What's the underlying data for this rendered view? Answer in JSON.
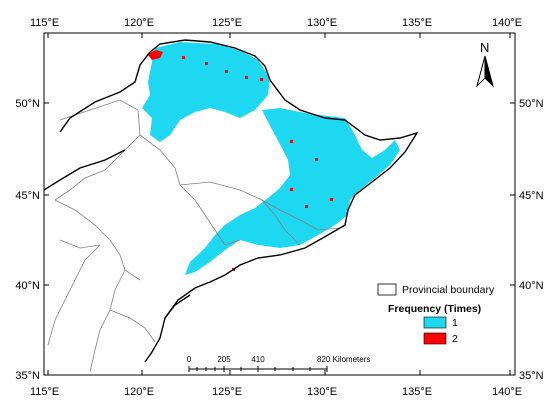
{
  "axes": {
    "lon_labels": [
      "115°E",
      "120°E",
      "125°E",
      "130°E",
      "135°E",
      "140°E"
    ],
    "lat_labels": [
      "50°N",
      "45°N",
      "40°N",
      "35°N"
    ]
  },
  "north_arrow": {
    "label": "N",
    "icon": "north-arrow-icon"
  },
  "legend": {
    "boundary_label": "Provincial boundary",
    "frequency_title": "Frequency (Times)",
    "items": [
      {
        "label": "1",
        "color": "#1ed8f2"
      },
      {
        "label": "2",
        "color": "#ff0000"
      }
    ]
  },
  "scale_bar": {
    "labels": [
      "0",
      "205",
      "410",
      "820 Kilometers"
    ]
  },
  "colors": {
    "frequency_1": "#1ed8f2",
    "frequency_2": "#ff0000",
    "boundary": "#000000",
    "province": "#808080"
  }
}
